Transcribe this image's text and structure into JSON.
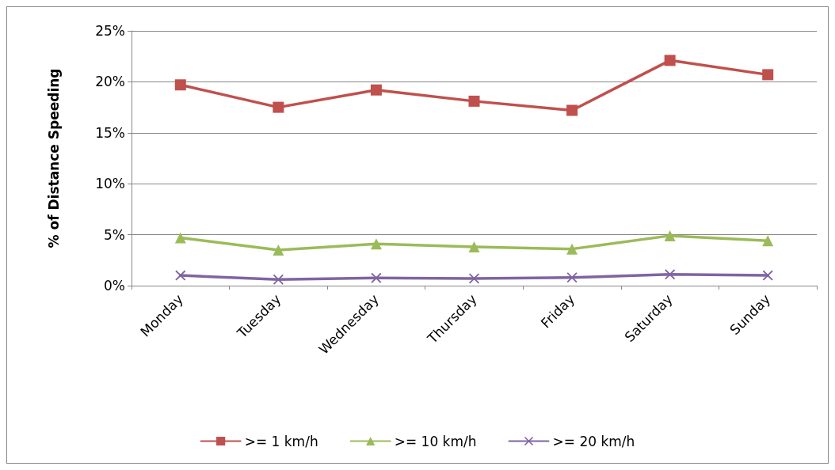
{
  "chart_data": {
    "type": "line",
    "ylabel": "% of Distance Speeding",
    "categories": [
      "Monday",
      "Tuesday",
      "Wednesday",
      "Thursday",
      "Friday",
      "Saturday",
      "Sunday"
    ],
    "series": [
      {
        "name": ">= 1 km/h",
        "color": "#c0504d",
        "marker": "square",
        "values": [
          19.7,
          17.5,
          19.2,
          18.1,
          17.2,
          22.1,
          20.7
        ]
      },
      {
        "name": ">= 10 km/h",
        "color": "#9bbb59",
        "marker": "triangle",
        "values": [
          4.7,
          3.5,
          4.1,
          3.8,
          3.6,
          4.9,
          4.4
        ]
      },
      {
        "name": ">= 20 km/h",
        "color": "#8064a2",
        "marker": "cross",
        "values": [
          1.0,
          0.6,
          0.75,
          0.7,
          0.8,
          1.1,
          1.0
        ]
      }
    ],
    "ylim": [
      0,
      25
    ],
    "yticks": [
      {
        "value": 0,
        "label": "0%"
      },
      {
        "value": 5,
        "label": "5%"
      },
      {
        "value": 10,
        "label": "10%"
      },
      {
        "value": 15,
        "label": "15%"
      },
      {
        "value": 20,
        "label": "20%"
      },
      {
        "value": 25,
        "label": "25%"
      }
    ],
    "grid": "y",
    "legend": "bottom",
    "line_style": "solid"
  }
}
